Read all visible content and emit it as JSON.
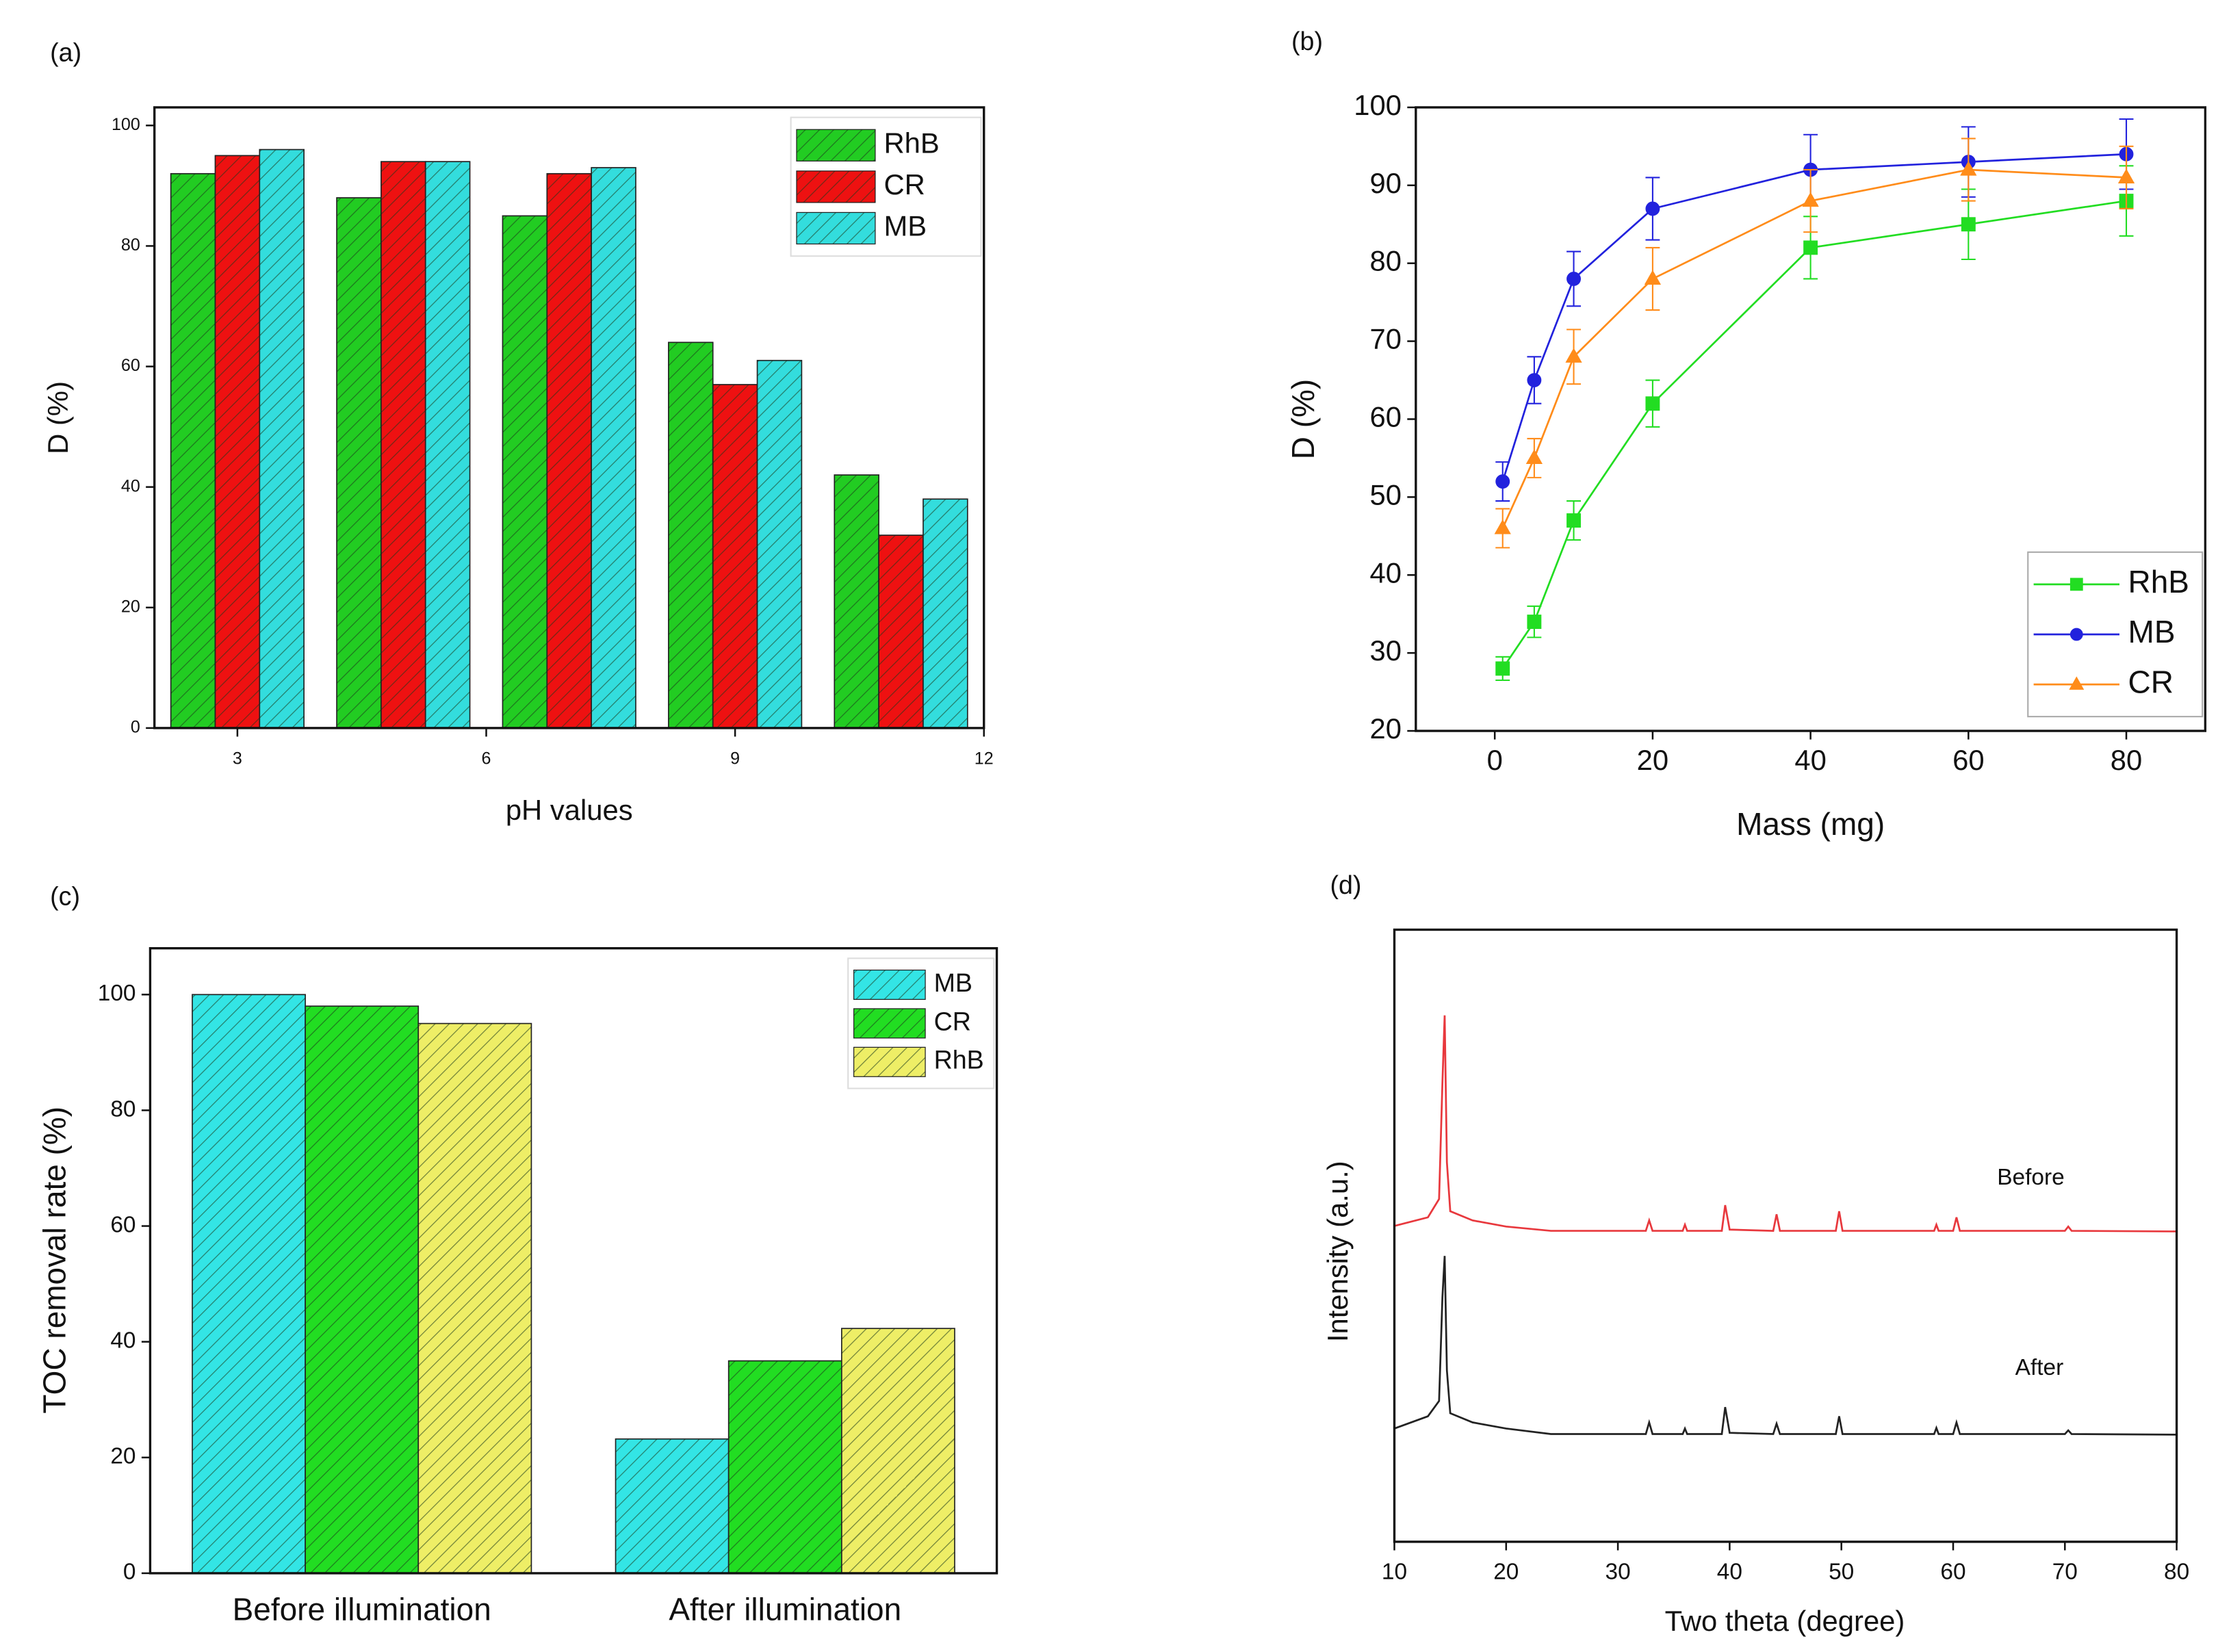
{
  "chart_data": [
    {
      "type": "bar",
      "label": "(a)",
      "xlabel": "pH values",
      "ylabel": "D (%)",
      "x": [
        3,
        5,
        7,
        9,
        11
      ],
      "xlim": [
        2,
        12
      ],
      "xticks": [
        3,
        6,
        9,
        12
      ],
      "ylim": [
        0,
        103
      ],
      "yticks": [
        0,
        20,
        40,
        60,
        80,
        100
      ],
      "legend": "upper right",
      "hatch": true,
      "series": [
        {
          "name": "RhB",
          "color": "#22cc22",
          "values": [
            92,
            88,
            85,
            64,
            42
          ]
        },
        {
          "name": "CR",
          "color": "#ee1111",
          "values": [
            95,
            94,
            92,
            57,
            32
          ]
        },
        {
          "name": "MB",
          "color": "#33dddd",
          "values": [
            96,
            94,
            93,
            61,
            38
          ]
        }
      ]
    },
    {
      "type": "line",
      "label": "(b)",
      "xlabel": "Mass (mg)",
      "ylabel": "D (%)",
      "x": [
        1,
        5,
        10,
        20,
        40,
        60,
        80
      ],
      "xlim": [
        -10,
        90
      ],
      "xticks": [
        0,
        20,
        40,
        60,
        80
      ],
      "ylim": [
        20,
        100
      ],
      "yticks": [
        20,
        30,
        40,
        50,
        60,
        70,
        80,
        90,
        100
      ],
      "legend": "lower right",
      "series": [
        {
          "name": "RhB",
          "color": "#22dd22",
          "marker": "square",
          "values": [
            28,
            34,
            47,
            62,
            82,
            85,
            88
          ],
          "errors": [
            1.5,
            2,
            2.5,
            3,
            4,
            4.5,
            4.5
          ]
        },
        {
          "name": "MB",
          "color": "#2222dd",
          "marker": "circle",
          "values": [
            52,
            65,
            78,
            87,
            92,
            93,
            94
          ],
          "errors": [
            2.5,
            3,
            3.5,
            4,
            4.5,
            4.5,
            4.5
          ]
        },
        {
          "name": "CR",
          "color": "#ff8c1a",
          "marker": "triangle",
          "values": [
            46,
            55,
            68,
            78,
            88,
            92,
            91
          ],
          "errors": [
            2.5,
            2.5,
            3.5,
            4,
            4,
            4,
            4
          ]
        }
      ]
    },
    {
      "type": "bar",
      "label": "(c)",
      "ylabel": "TOC removal rate (%)",
      "categories": [
        "Before illumination",
        "After illumination"
      ],
      "ylim": [
        0,
        108
      ],
      "yticks": [
        0,
        20,
        40,
        60,
        80,
        100
      ],
      "legend": "upper right",
      "hatch": true,
      "series": [
        {
          "name": "MB",
          "color": "#33e5e5",
          "values": [
            100,
            23.2
          ]
        },
        {
          "name": "CR",
          "color": "#22dd22",
          "values": [
            98,
            36.7
          ]
        },
        {
          "name": "RhB",
          "color": "#eeee66",
          "values": [
            95,
            42.3
          ]
        }
      ]
    },
    {
      "type": "line",
      "label": "(d)",
      "xlabel": "Two theta (degree)",
      "ylabel": "Intensity (a.u.)",
      "x": [
        10,
        13,
        14,
        14.3,
        14.5,
        14.7,
        15,
        17,
        20,
        24,
        32.5,
        32.8,
        33.1,
        35.8,
        36,
        36.2,
        39.3,
        39.6,
        40,
        43.9,
        44.2,
        44.5,
        49.5,
        49.8,
        50.1,
        58.3,
        58.5,
        58.7,
        60,
        60.3,
        60.6,
        70,
        70.3,
        70.6,
        80
      ],
      "xlim": [
        10,
        80
      ],
      "xticks": [
        10,
        20,
        30,
        40,
        50,
        60,
        70,
        80
      ],
      "ylim": [
        0,
        100
      ],
      "series": [
        {
          "name": "Before",
          "color": "#e8383d",
          "values": [
            51.6,
            53,
            56,
            75,
            86,
            62,
            54,
            52.5,
            51.5,
            50.8,
            50.8,
            52.5,
            50.8,
            50.8,
            51.8,
            50.8,
            50.8,
            55,
            51,
            50.8,
            53.5,
            50.8,
            50.8,
            54,
            50.8,
            50.8,
            51.8,
            50.8,
            50.8,
            53,
            50.8,
            50.8,
            51.5,
            50.8,
            50.7
          ]
        },
        {
          "name": "After",
          "color": "#222222",
          "values": [
            18.5,
            20.5,
            23,
            40,
            46.7,
            28,
            21,
            19.5,
            18.5,
            17.6,
            17.6,
            19.5,
            17.6,
            17.6,
            18.5,
            17.6,
            17.6,
            22,
            17.8,
            17.6,
            19.3,
            17.6,
            17.6,
            20.5,
            17.6,
            17.6,
            18.6,
            17.6,
            17.6,
            19.5,
            17.6,
            17.6,
            18.2,
            17.6,
            17.5
          ]
        }
      ]
    }
  ]
}
